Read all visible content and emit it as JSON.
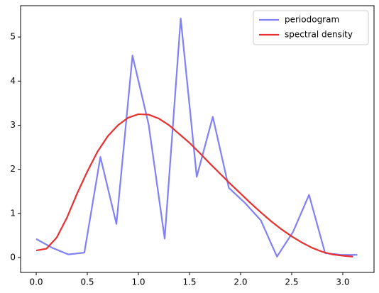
{
  "chart_data": {
    "type": "line",
    "series": [
      {
        "name": "periodogram",
        "color": "#8080f8",
        "x": [
          0,
          0.157,
          0.314,
          0.471,
          0.628,
          0.785,
          0.942,
          1.1,
          1.257,
          1.414,
          1.571,
          1.728,
          1.885,
          2.042,
          2.199,
          2.356,
          2.513,
          2.67,
          2.827,
          2.985,
          3.142
        ],
        "values": [
          0.42,
          0.22,
          0.07,
          0.11,
          2.28,
          0.76,
          4.58,
          3.02,
          0.43,
          5.42,
          1.83,
          3.19,
          1.58,
          1.24,
          0.84,
          0.02,
          0.58,
          1.42,
          0.1,
          0.06,
          0.06
        ]
      },
      {
        "name": "spectral density",
        "color": "#e83030",
        "x": [
          0,
          0.1,
          0.2,
          0.3,
          0.4,
          0.5,
          0.6,
          0.7,
          0.8,
          0.9,
          1.0,
          1.1,
          1.2,
          1.3,
          1.4,
          1.5,
          1.6,
          1.7,
          1.8,
          1.9,
          2.0,
          2.1,
          2.2,
          2.3,
          2.4,
          2.5,
          2.6,
          2.7,
          2.8,
          2.9,
          3.0,
          3.1
        ],
        "values": [
          0.16,
          0.2,
          0.45,
          0.9,
          1.45,
          1.95,
          2.4,
          2.75,
          3.0,
          3.17,
          3.25,
          3.24,
          3.15,
          3.0,
          2.8,
          2.6,
          2.37,
          2.13,
          1.9,
          1.67,
          1.45,
          1.23,
          1.02,
          0.82,
          0.64,
          0.48,
          0.34,
          0.22,
          0.13,
          0.07,
          0.04,
          0.02
        ]
      }
    ],
    "xlim": [
      -0.153,
      3.306
    ],
    "ylim": [
      -0.338,
      5.71
    ],
    "xticks": [
      {
        "value": 0,
        "label": "0.0"
      },
      {
        "value": 0.5,
        "label": "0.5"
      },
      {
        "value": 1,
        "label": "1.0"
      },
      {
        "value": 1.5,
        "label": "1.5"
      },
      {
        "value": 2,
        "label": "2.0"
      },
      {
        "value": 2.5,
        "label": "2.5"
      },
      {
        "value": 3,
        "label": "3.0"
      }
    ],
    "yticks": [
      0,
      1,
      2,
      3,
      4,
      5
    ],
    "legend": "upper right"
  }
}
